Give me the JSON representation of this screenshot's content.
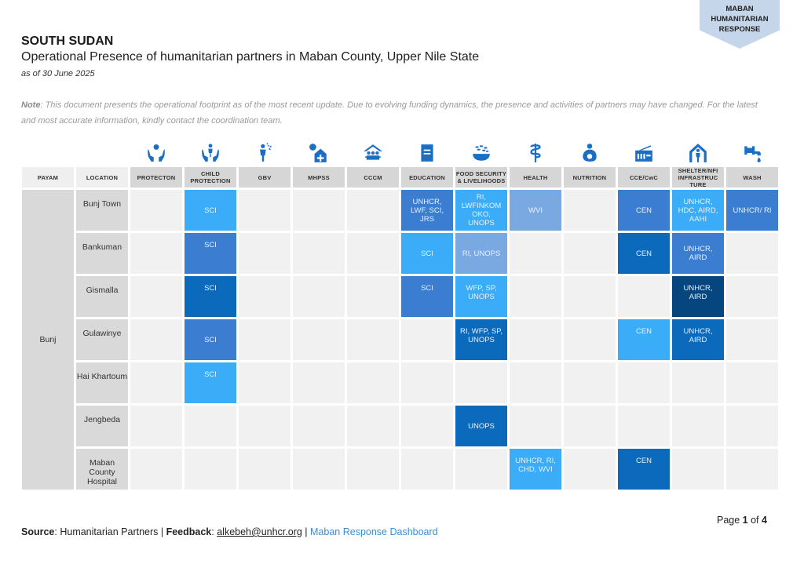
{
  "badge": {
    "lines": [
      "MABAN",
      "HUMANITARIAN",
      "RESPONSE"
    ]
  },
  "header": {
    "country": "SOUTH SUDAN",
    "subtitle": "Operational Presence of humanitarian partners in Maban County, Upper Nile State",
    "as_of": "as of 30 June 2025"
  },
  "note": {
    "label": "Note",
    "text": ": This document presents the operational footprint as of the most recent update. Due to evolving funding dynamics, the presence and activities of partners may have changed. For the latest and most accurate information, kindly contact the coordination team."
  },
  "colors": {
    "icon": "#1a6fc4",
    "shade_1": "#3b7dd0",
    "shade_2": "#3bacf7",
    "shade_3": "#7aa9e2",
    "shade_4": "#0b6abb",
    "shade_5": "#06467f",
    "empty": "#f1f1f1"
  },
  "table": {
    "payam_header": "PAYAM",
    "location_header": "LOCATION",
    "sectors": [
      {
        "label": "PROTECTON",
        "icon": "protection-icon"
      },
      {
        "label": "CHILD PROTECTION",
        "icon": "child-protection-icon"
      },
      {
        "label": "GBV",
        "icon": "gbv-icon"
      },
      {
        "label": "MHPSS",
        "icon": "mhpss-icon"
      },
      {
        "label": "CCCM",
        "icon": "cccm-icon"
      },
      {
        "label": "EDUCATION",
        "icon": "education-icon"
      },
      {
        "label": "FOOD SECURITY & LIVELIHOODS",
        "icon": "food-security-icon"
      },
      {
        "label": "HEALTH",
        "icon": "health-icon"
      },
      {
        "label": "NUTRITION",
        "icon": "nutrition-icon"
      },
      {
        "label": "CCE/CwC",
        "icon": "radio-icon"
      },
      {
        "label": "SHELTER/NFI INFRASTRUC TURE",
        "icon": "shelter-icon"
      },
      {
        "label": "WASH",
        "icon": "water-tap-icon"
      }
    ],
    "payam": "Bunj",
    "rows": [
      {
        "location": "Bunj Town",
        "cells": [
          null,
          {
            "text": "SCI",
            "shade": 2,
            "valign": "mid"
          },
          null,
          null,
          null,
          {
            "text": "UNHCR, LWF, SCI, JRS",
            "shade": 1,
            "valign": "mid"
          },
          {
            "text": "RI, LWFINKOM OKO, UNOPS",
            "shade": 2,
            "valign": "mid"
          },
          {
            "text": "WVI",
            "shade": 3,
            "valign": "mid"
          },
          null,
          {
            "text": "CEN",
            "shade": 1,
            "valign": "mid"
          },
          {
            "text": "UNHCR, HDC, AIRD, AAHI",
            "shade": 2,
            "valign": "mid"
          },
          {
            "text": "UNHCR/ RI",
            "shade": 1,
            "valign": "mid"
          }
        ]
      },
      {
        "location": "Bankuman",
        "cells": [
          null,
          {
            "text": "SCI",
            "shade": 1,
            "valign": "top"
          },
          null,
          null,
          null,
          {
            "text": "SCI",
            "shade": 2,
            "valign": "mid"
          },
          {
            "text": "RI, UNOPS",
            "shade": 3,
            "valign": "mid"
          },
          null,
          null,
          {
            "text": "CEN",
            "shade": 4,
            "valign": "mid"
          },
          {
            "text": "UNHCR, AIRD",
            "shade": 1,
            "valign": "mid"
          },
          null
        ]
      },
      {
        "location": "Gismalla",
        "cells": [
          null,
          {
            "text": "SCI",
            "shade": 4,
            "valign": "top"
          },
          null,
          null,
          null,
          {
            "text": "SCI",
            "shade": 1,
            "valign": "top"
          },
          {
            "text": "WFP, SP, UNOPS",
            "shade": 2,
            "valign": "top"
          },
          null,
          null,
          null,
          {
            "text": "UNHCR, AIRD",
            "shade": 5,
            "valign": "top"
          },
          null
        ]
      },
      {
        "location": "Gulawinye",
        "cells": [
          null,
          {
            "text": "SCI",
            "shade": 1,
            "valign": "mid"
          },
          null,
          null,
          null,
          null,
          {
            "text": "RI, WFP, SP, UNOPS",
            "shade": 4,
            "valign": "top"
          },
          null,
          null,
          {
            "text": "CEN",
            "shade": 2,
            "valign": "top"
          },
          {
            "text": "UNHCR, AIRD",
            "shade": 4,
            "valign": "top"
          },
          null
        ]
      },
      {
        "location": "Hai Khartoum",
        "cells": [
          null,
          {
            "text": "SCI",
            "shade": 2,
            "valign": "top"
          },
          null,
          null,
          null,
          null,
          null,
          null,
          null,
          null,
          null,
          null
        ]
      },
      {
        "location": "Jengbeda",
        "cells": [
          null,
          null,
          null,
          null,
          null,
          null,
          {
            "text": "UNOPS",
            "shade": 4,
            "valign": "mid"
          },
          null,
          null,
          null,
          null,
          null
        ]
      },
      {
        "location": "Maban County Hospital",
        "cells": [
          null,
          null,
          null,
          null,
          null,
          null,
          null,
          {
            "text": "UNHCR, RI, CHD, WVI",
            "shade": 2,
            "valign": "top"
          },
          null,
          {
            "text": "CEN",
            "shade": 4,
            "valign": "top"
          },
          null,
          null
        ]
      }
    ]
  },
  "footer": {
    "source_label": "Source",
    "source_text": ": Humanitarian Partners | ",
    "feedback_label": "Feedback",
    "feedback_sep": ": ",
    "email": "alkebeh@unhcr.org",
    "pipe": " | ",
    "dashboard_link": "Maban Response Dashboard",
    "page_prefix": "Page ",
    "page_current": "1",
    "page_of": " of ",
    "page_total": "4"
  }
}
